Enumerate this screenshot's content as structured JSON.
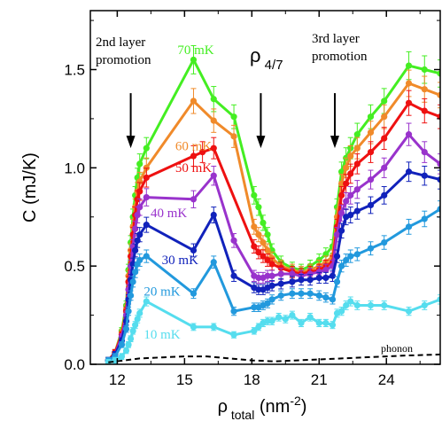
{
  "chart_data": {
    "type": "line",
    "title": "",
    "xlabel": {
      "base": "ρ",
      "sub": "total",
      "unit_open": " (nm",
      "unit_sup": "-2",
      "unit_close": ")"
    },
    "ylabel": "C (mJ/K)",
    "xlim": [
      10.8,
      26.4
    ],
    "ylim": [
      0,
      1.8
    ],
    "xticks": [
      12,
      15,
      18,
      21,
      24
    ],
    "yticks": [
      0.0,
      0.5,
      1.0,
      1.5
    ],
    "ytick_labels": [
      "0.0",
      "0.5",
      "1.0",
      "1.5"
    ],
    "annotations": {
      "second_layer": {
        "lines": [
          "2nd layer",
          "promotion"
        ],
        "arrow_x": 12.6,
        "arrow_from": 1.38,
        "arrow_to": 1.1
      },
      "rho": {
        "base": "ρ",
        "sub": "4/7",
        "arrow_x": 18.4,
        "arrow_from": 1.38,
        "arrow_to": 1.1
      },
      "third_layer": {
        "lines": [
          "3rd layer",
          "promotion"
        ],
        "arrow_x": 21.7,
        "arrow_from": 1.38,
        "arrow_to": 1.1
      },
      "phonon": "phonon"
    },
    "phonon": {
      "name": "phonon",
      "x": [
        11.6,
        12.3,
        13.0,
        14.0,
        15.0,
        16.0,
        17.0,
        18.0,
        19.0,
        20.0,
        21.0,
        22.0,
        23.0,
        24.0,
        25.0,
        26.4
      ],
      "y": [
        0.01,
        0.02,
        0.03,
        0.035,
        0.04,
        0.04,
        0.03,
        0.02,
        0.015,
        0.02,
        0.025,
        0.03,
        0.035,
        0.04,
        0.045,
        0.05
      ]
    },
    "series": [
      {
        "name": "70 mK",
        "color": "#44ee22",
        "label_at": [
          15.5,
          1.58
        ],
        "x": [
          11.6,
          11.9,
          12.2,
          12.4,
          12.5,
          12.6,
          12.7,
          12.8,
          12.9,
          13.0,
          13.3,
          15.4,
          16.3,
          17.2,
          18.1,
          18.3,
          18.5,
          18.7,
          18.9,
          19.3,
          19.8,
          20.2,
          20.6,
          21.0,
          21.3,
          21.6,
          21.8,
          22.0,
          22.2,
          22.4,
          22.7,
          23.3,
          23.9,
          25.0,
          25.7,
          26.4
        ],
        "y": [
          0.02,
          0.06,
          0.17,
          0.3,
          0.48,
          0.62,
          0.75,
          0.86,
          0.95,
          1.02,
          1.1,
          1.55,
          1.35,
          1.26,
          0.86,
          0.8,
          0.72,
          0.66,
          0.58,
          0.52,
          0.49,
          0.48,
          0.5,
          0.53,
          0.56,
          0.6,
          0.8,
          0.98,
          1.05,
          1.1,
          1.17,
          1.26,
          1.34,
          1.52,
          1.5,
          1.48
        ]
      },
      {
        "name": "60 mK",
        "color": "#f08a2a",
        "label_at": [
          15.4,
          1.09
        ],
        "x": [
          11.6,
          11.9,
          12.2,
          12.4,
          12.5,
          12.6,
          12.7,
          12.8,
          12.9,
          13.0,
          13.3,
          15.4,
          16.3,
          17.2,
          18.1,
          18.3,
          18.5,
          18.7,
          18.9,
          19.3,
          19.8,
          20.2,
          20.6,
          21.0,
          21.3,
          21.6,
          21.8,
          22.0,
          22.2,
          22.4,
          22.7,
          23.3,
          23.9,
          25.0,
          25.7,
          26.4
        ],
        "y": [
          0.02,
          0.06,
          0.16,
          0.28,
          0.45,
          0.58,
          0.7,
          0.8,
          0.88,
          0.93,
          1.0,
          1.34,
          1.24,
          1.16,
          0.7,
          0.66,
          0.62,
          0.58,
          0.54,
          0.5,
          0.48,
          0.47,
          0.48,
          0.5,
          0.52,
          0.55,
          0.75,
          0.92,
          1.0,
          1.06,
          1.1,
          1.18,
          1.26,
          1.43,
          1.4,
          1.37
        ]
      },
      {
        "name": "50 mK",
        "color": "#ee1111",
        "label_at": [
          15.4,
          0.98
        ],
        "x": [
          11.6,
          11.9,
          12.2,
          12.4,
          12.5,
          12.6,
          12.7,
          12.8,
          12.9,
          13.0,
          13.3,
          15.4,
          15.8,
          16.3,
          18.1,
          18.3,
          18.5,
          18.7,
          18.9,
          19.3,
          19.8,
          20.2,
          20.6,
          21.0,
          21.3,
          21.6,
          21.8,
          22.0,
          22.2,
          22.4,
          22.7,
          23.3,
          23.9,
          25.0,
          25.7,
          26.4
        ],
        "y": [
          0.02,
          0.06,
          0.15,
          0.27,
          0.42,
          0.55,
          0.66,
          0.76,
          0.84,
          0.88,
          0.95,
          1.06,
          1.08,
          1.1,
          0.6,
          0.57,
          0.55,
          0.53,
          0.51,
          0.49,
          0.47,
          0.46,
          0.47,
          0.48,
          0.5,
          0.52,
          0.7,
          0.86,
          0.92,
          0.97,
          1.02,
          1.08,
          1.15,
          1.33,
          1.29,
          1.26
        ]
      },
      {
        "name": "40 mK",
        "color": "#9933cc",
        "label_at": [
          14.3,
          0.75
        ],
        "x": [
          11.6,
          11.9,
          12.2,
          12.4,
          12.5,
          12.6,
          12.7,
          12.8,
          12.9,
          13.0,
          13.3,
          15.4,
          16.3,
          17.2,
          18.1,
          18.3,
          18.5,
          18.7,
          18.9,
          19.3,
          19.8,
          20.2,
          20.6,
          21.0,
          21.3,
          21.6,
          21.8,
          22.0,
          22.2,
          22.4,
          22.7,
          23.3,
          23.9,
          25.0,
          25.7,
          26.4
        ],
        "y": [
          0.02,
          0.05,
          0.14,
          0.25,
          0.38,
          0.5,
          0.6,
          0.69,
          0.76,
          0.8,
          0.85,
          0.84,
          0.96,
          0.63,
          0.45,
          0.44,
          0.44,
          0.45,
          0.45,
          0.46,
          0.46,
          0.45,
          0.46,
          0.47,
          0.48,
          0.5,
          0.66,
          0.77,
          0.83,
          0.86,
          0.89,
          0.94,
          1.0,
          1.17,
          1.08,
          1.02
        ]
      },
      {
        "name": "30 mK",
        "color": "#1122bb",
        "label_at": [
          14.8,
          0.51
        ],
        "x": [
          11.6,
          11.9,
          12.2,
          12.4,
          12.5,
          12.6,
          12.7,
          12.8,
          12.9,
          13.0,
          13.3,
          15.4,
          16.3,
          17.2,
          18.1,
          18.3,
          18.5,
          18.7,
          18.9,
          19.3,
          19.8,
          20.2,
          20.6,
          21.0,
          21.3,
          21.6,
          21.8,
          22.0,
          22.2,
          22.4,
          22.7,
          23.3,
          23.9,
          25.0,
          25.7,
          26.4
        ],
        "y": [
          0.02,
          0.05,
          0.12,
          0.22,
          0.33,
          0.43,
          0.51,
          0.58,
          0.63,
          0.66,
          0.71,
          0.58,
          0.76,
          0.45,
          0.39,
          0.38,
          0.38,
          0.39,
          0.4,
          0.41,
          0.42,
          0.43,
          0.43,
          0.44,
          0.44,
          0.45,
          0.55,
          0.68,
          0.75,
          0.76,
          0.78,
          0.81,
          0.86,
          0.98,
          0.96,
          0.94
        ]
      },
      {
        "name": "20 mK",
        "color": "#2299dd",
        "label_at": [
          14.0,
          0.35
        ],
        "x": [
          11.6,
          11.9,
          12.2,
          12.4,
          12.5,
          12.6,
          12.7,
          12.8,
          12.9,
          13.0,
          13.3,
          15.4,
          16.3,
          17.2,
          18.1,
          18.3,
          18.5,
          18.7,
          18.9,
          19.3,
          19.8,
          20.2,
          20.6,
          21.0,
          21.3,
          21.6,
          21.8,
          22.0,
          22.2,
          22.4,
          22.7,
          23.3,
          23.9,
          25.0,
          25.7,
          26.4
        ],
        "y": [
          0.02,
          0.04,
          0.1,
          0.18,
          0.27,
          0.35,
          0.42,
          0.47,
          0.51,
          0.53,
          0.55,
          0.36,
          0.52,
          0.27,
          0.29,
          0.29,
          0.3,
          0.31,
          0.33,
          0.35,
          0.36,
          0.36,
          0.36,
          0.35,
          0.34,
          0.33,
          0.42,
          0.5,
          0.53,
          0.55,
          0.56,
          0.59,
          0.62,
          0.7,
          0.74,
          0.79
        ]
      },
      {
        "name": "10 mK",
        "color": "#55ddee",
        "label_at": [
          14.0,
          0.13
        ],
        "x": [
          11.6,
          11.9,
          12.2,
          12.4,
          12.5,
          12.6,
          12.7,
          12.8,
          12.9,
          13.0,
          13.3,
          15.4,
          16.3,
          17.2,
          18.1,
          18.3,
          18.5,
          18.7,
          18.9,
          19.2,
          19.5,
          19.8,
          20.2,
          20.6,
          21.0,
          21.3,
          21.6,
          21.8,
          22.0,
          22.2,
          22.4,
          22.7,
          23.3,
          23.9,
          25.0,
          25.7,
          26.4
        ],
        "y": [
          0.01,
          0.02,
          0.04,
          0.07,
          0.1,
          0.13,
          0.17,
          0.2,
          0.23,
          0.26,
          0.32,
          0.19,
          0.19,
          0.15,
          0.17,
          0.19,
          0.21,
          0.22,
          0.22,
          0.24,
          0.23,
          0.25,
          0.21,
          0.24,
          0.21,
          0.21,
          0.2,
          0.26,
          0.27,
          0.3,
          0.32,
          0.3,
          0.3,
          0.3,
          0.27,
          0.3,
          0.33
        ]
      }
    ]
  }
}
